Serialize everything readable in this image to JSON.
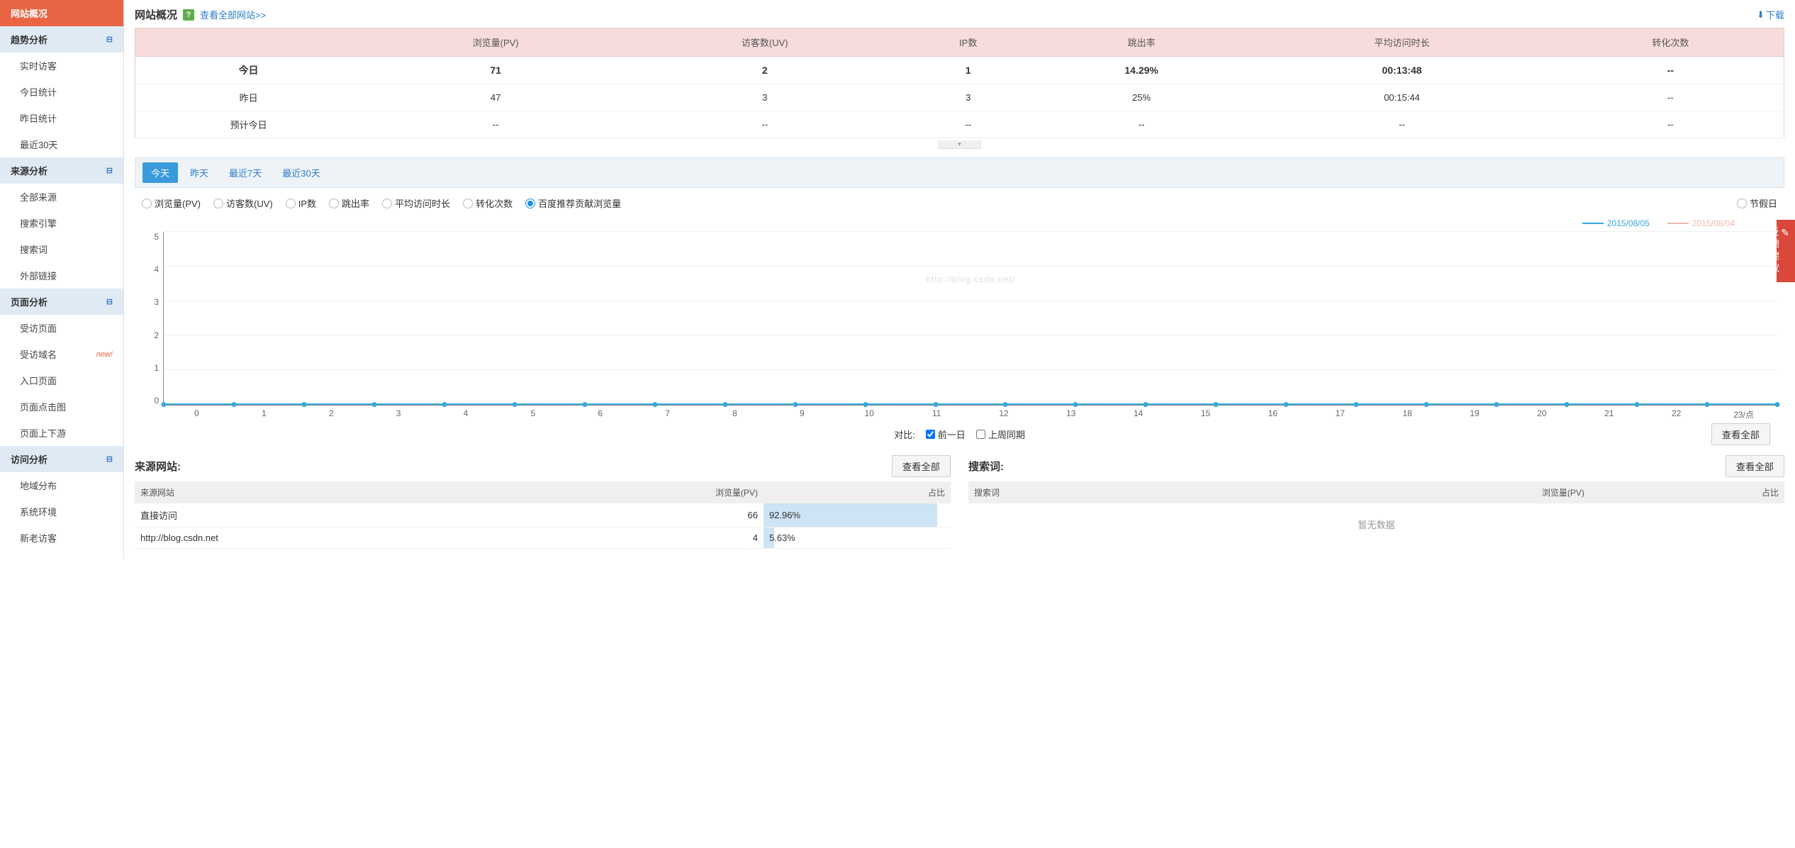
{
  "sidebar": {
    "active": "网站概况",
    "sections": [
      {
        "label": "趋势分析",
        "items": [
          "实时访客",
          "今日统计",
          "昨日统计",
          "最近30天"
        ]
      },
      {
        "label": "来源分析",
        "items": [
          "全部来源",
          "搜索引擎",
          "搜索词",
          "外部链接"
        ]
      },
      {
        "label": "页面分析",
        "items": [
          "受访页面",
          "受访域名",
          "入口页面",
          "页面点击图",
          "页面上下游"
        ],
        "new_index": 1
      },
      {
        "label": "访问分析",
        "items": [
          "地域分布",
          "系统环境",
          "新老访客"
        ]
      }
    ],
    "new_text": "new!"
  },
  "header": {
    "title": "网站概况",
    "view_all": "查看全部网站>>",
    "download": "下载"
  },
  "summary": {
    "columns": [
      "",
      "浏览量(PV)",
      "访客数(UV)",
      "IP数",
      "跳出率",
      "平均访问时长",
      "转化次数"
    ],
    "rows": [
      {
        "label": "今日",
        "cells": [
          "71",
          "2",
          "1",
          "14.29%",
          "00:13:48",
          "--"
        ],
        "bold": true
      },
      {
        "label": "昨日",
        "cells": [
          "47",
          "3",
          "3",
          "25%",
          "00:15:44",
          "--"
        ]
      },
      {
        "label": "预计今日",
        "cells": [
          "--",
          "--",
          "--",
          "--",
          "--",
          "--"
        ]
      }
    ]
  },
  "date_tabs": {
    "items": [
      "今天",
      "昨天",
      "最近7天",
      "最近30天"
    ],
    "active": 0
  },
  "metrics": {
    "items": [
      "浏览量(PV)",
      "访客数(UV)",
      "IP数",
      "跳出率",
      "平均访问时长",
      "转化次数",
      "百度推荐贡献浏览量"
    ],
    "active": 6,
    "holiday": "节假日"
  },
  "chart": {
    "series1_label": "2015/08/05",
    "series2_label": "2015/08/04",
    "series1_color": "#35a8e0",
    "series2_color": "#f0b9a8",
    "ylim": [
      0,
      5
    ],
    "ytick_step": 1,
    "x_labels": [
      "0",
      "1",
      "2",
      "3",
      "4",
      "5",
      "6",
      "7",
      "8",
      "9",
      "10",
      "11",
      "12",
      "13",
      "14",
      "15",
      "16",
      "17",
      "18",
      "19",
      "20",
      "21",
      "22",
      "23/点"
    ],
    "watermark": "http://blog.csdn.net/",
    "grid_color": "#eeeeee"
  },
  "compare": {
    "label": "对比:",
    "opt1": "前一日",
    "opt2": "上周同期",
    "view_all": "查看全部"
  },
  "source_panel": {
    "title": "来源网站:",
    "view_all": "查看全部",
    "columns": [
      "来源网站",
      "浏览量(PV)",
      "占比"
    ],
    "rows": [
      {
        "name": "直接访问",
        "pv": "66",
        "pct": "92.96%",
        "pct_num": 92.96
      },
      {
        "name": "http://blog.csdn.net",
        "pv": "4",
        "pct": "5.63%",
        "pct_num": 5.63
      }
    ]
  },
  "search_panel": {
    "title": "搜索词:",
    "view_all": "查看全部",
    "columns": [
      "搜索词",
      "浏览量(PV)",
      "占比"
    ],
    "no_data": "暂无数据"
  },
  "feedback": "反馈建议"
}
